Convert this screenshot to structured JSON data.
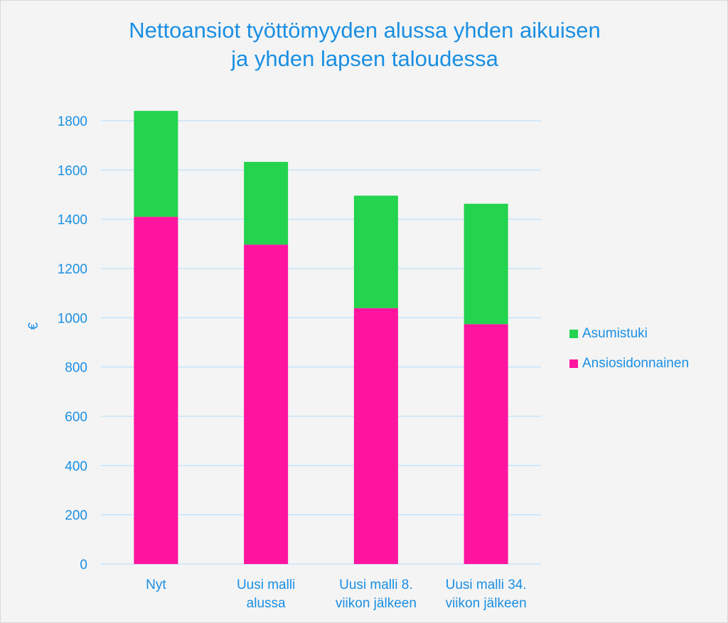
{
  "chart_data": {
    "type": "bar",
    "stacked": true,
    "title": "Nettoansiot työttömyyden alussa yhden aikuisen ja yhden lapsen taloudessa",
    "title_lines": [
      "Nettoansiot työttömyyden alussa yhden aikuisen",
      "ja yhden lapsen taloudessa"
    ],
    "xlabel": "",
    "ylabel": "€",
    "ylim": [
      0,
      1800
    ],
    "yticks": [
      0,
      200,
      400,
      600,
      800,
      1000,
      1200,
      1400,
      1600,
      1800
    ],
    "grid": true,
    "legend_position": "right",
    "categories": [
      [
        "Nyt"
      ],
      [
        "Uusi malli",
        "alussa"
      ],
      [
        "Uusi malli 8.",
        "viikon jälkeen"
      ],
      [
        "Uusi malli 34.",
        "viikon jälkeen"
      ]
    ],
    "series": [
      {
        "name": "Ansiosidonnainen",
        "color": "#ff14a0",
        "values": [
          1410,
          1297,
          1039,
          974
        ]
      },
      {
        "name": "Asumistuki",
        "color": "#24d34e",
        "values": [
          430,
          336,
          457,
          489
        ]
      }
    ]
  }
}
